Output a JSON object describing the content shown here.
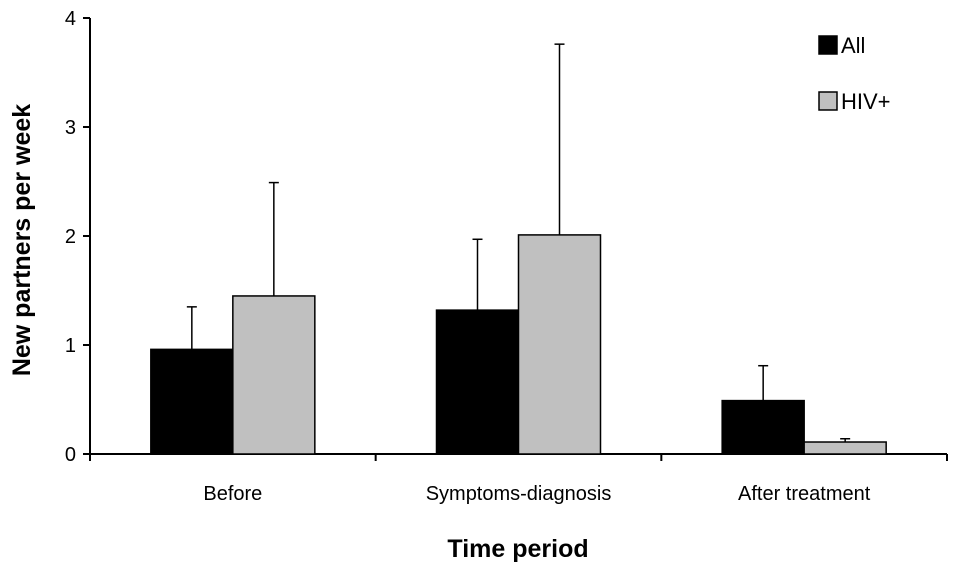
{
  "chart_data": {
    "type": "bar",
    "xlabel": "Time period",
    "ylabel": "New partners per week",
    "ylim": [
      0,
      4
    ],
    "yticks": [
      "0",
      "1",
      "2",
      "3",
      "4"
    ],
    "categories": [
      "Before",
      "Symptoms-diagnosis",
      "After treatment"
    ],
    "series": [
      {
        "name": "All",
        "color": "#000000",
        "values": [
          0.96,
          1.32,
          0.49
        ],
        "error_upper": [
          1.35,
          1.97,
          0.81
        ]
      },
      {
        "name": "HIV+",
        "color": "#c0c0c0",
        "values": [
          1.45,
          2.01,
          0.11
        ],
        "error_upper": [
          2.49,
          3.76,
          0.14
        ]
      }
    ],
    "legend_position": "top-right",
    "grid": false
  }
}
